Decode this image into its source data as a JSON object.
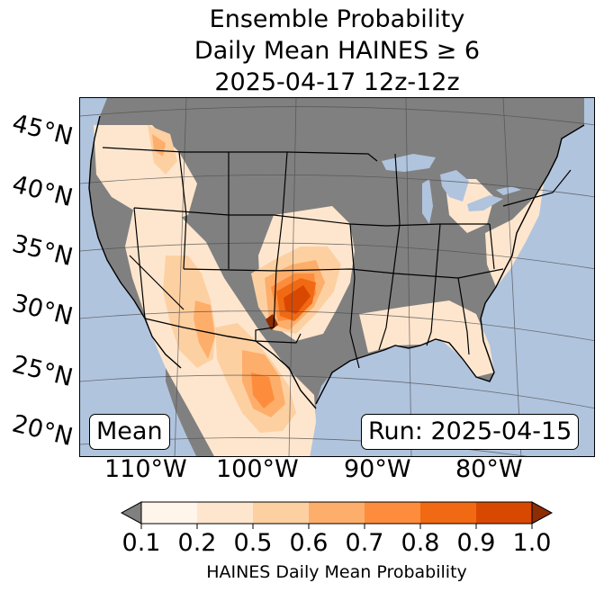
{
  "title": {
    "line1": "Ensemble Probability",
    "line2": "Daily Mean HAINES ≥ 6",
    "line3": "2025-04-17 12z-12z"
  },
  "map": {
    "region": "Contiguous United States",
    "latitude_labels": [
      "45°N",
      "40°N",
      "35°N",
      "30°N",
      "25°N",
      "20°N"
    ],
    "longitude_labels": [
      "110°W",
      "100°W",
      "90°W",
      "80°W"
    ],
    "stat_label": "Mean",
    "run_label": "Run: 2025-04-15",
    "colors": {
      "ocean": "#b0c4de",
      "land_no_data": "#808080",
      "border": "#000000",
      "gridline": "#4d4d4d"
    }
  },
  "colorbar": {
    "title": "HAINES Daily Mean Probability",
    "ticks": [
      "0.1",
      "0.2",
      "0.5",
      "0.6",
      "0.7",
      "0.8",
      "0.9",
      "1.0"
    ],
    "under_color": "#808080",
    "colors": [
      "#fff5eb",
      "#fee6ce",
      "#fdd0a2",
      "#fdae6b",
      "#fd8d3c",
      "#f16913",
      "#d94801"
    ],
    "over_color": "#8c2d04"
  }
}
